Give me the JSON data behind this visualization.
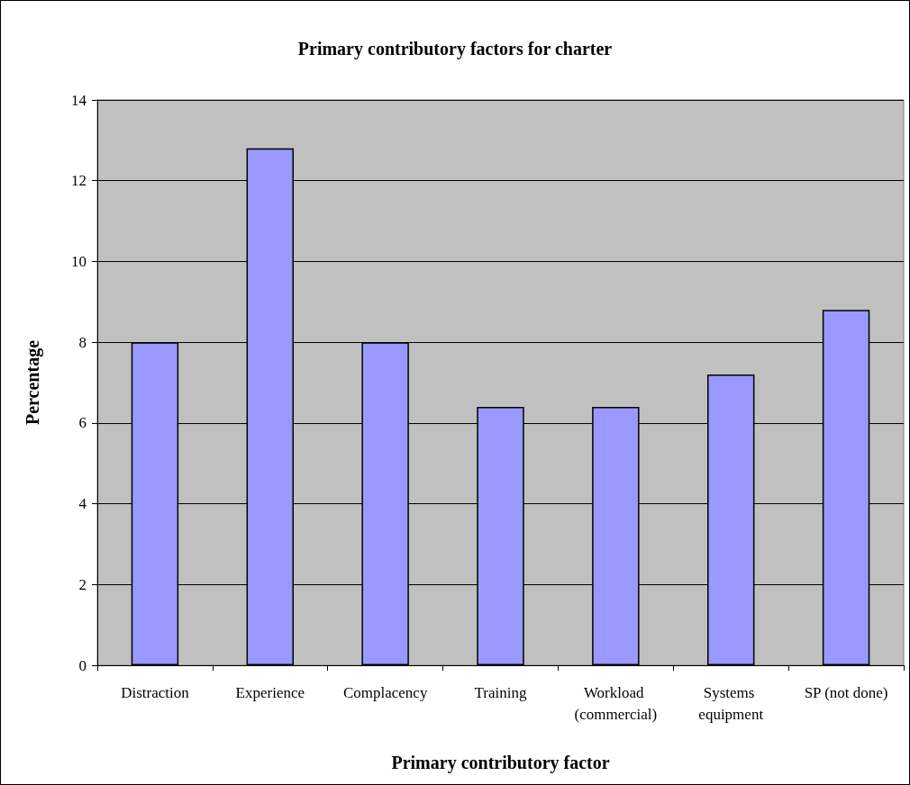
{
  "chart_data": {
    "type": "bar",
    "title": "Primary contributory factors for charter",
    "xlabel": "Primary contributory factor",
    "ylabel": "Percentage",
    "categories": [
      "Distraction",
      "Experience",
      "Complacency",
      "Training",
      "Workload (commercial)",
      "Systems equipment",
      "SP (not done)"
    ],
    "values": [
      8.0,
      12.8,
      8.0,
      6.4,
      6.4,
      7.2,
      8.8
    ],
    "color": "#9999ff",
    "ylim": [
      0,
      14
    ],
    "yticks": [
      0,
      2,
      4,
      6,
      8,
      10,
      12,
      14
    ],
    "grid": "y"
  }
}
